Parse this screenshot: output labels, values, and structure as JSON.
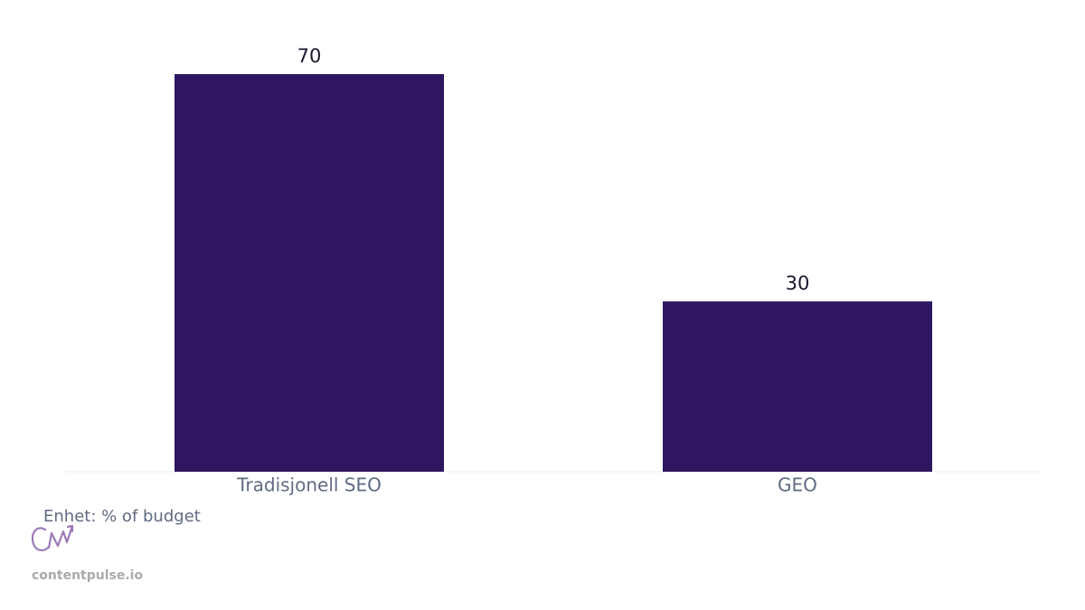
{
  "chart_data": {
    "type": "bar",
    "categories": [
      "Tradisjonell SEO",
      "GEO"
    ],
    "values": [
      70,
      30
    ],
    "color": "#2e1760",
    "annotation": "Enhet: % of budget",
    "watermark": "contentpulse.io"
  }
}
